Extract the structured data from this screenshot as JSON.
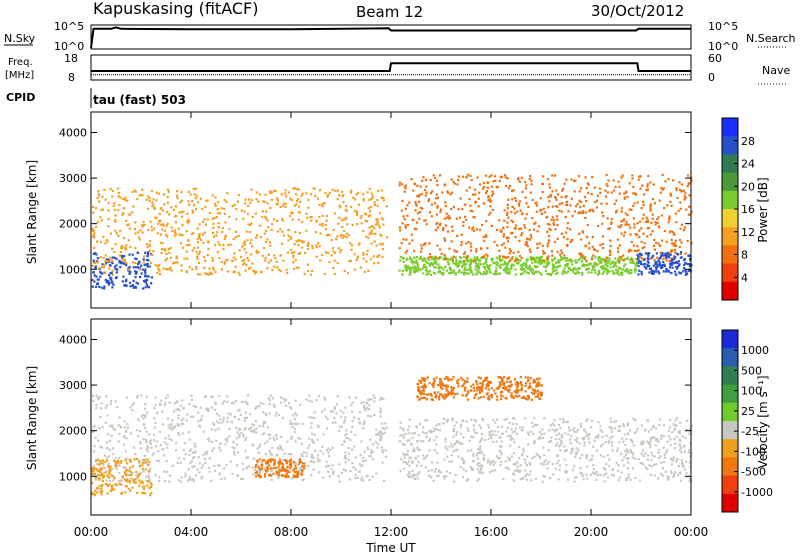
{
  "header": {
    "title": "Kapuskasing (fitACF)",
    "beam": "Beam 12",
    "date": "30/Oct/2012"
  },
  "panels": {
    "nsky": {
      "left_label": "N.Sky",
      "right_label": "N.Search",
      "left_ticks": [
        "10^5",
        "10^0"
      ],
      "right_ticks": [
        "10^5",
        "10^0"
      ]
    },
    "freq": {
      "left_label_1": "Freq.",
      "left_label_2": "[MHz]",
      "right_label": "Nave",
      "left_ticks": [
        "18",
        "8"
      ],
      "right_ticks": [
        "60",
        "0"
      ]
    },
    "cpid": {
      "label": "CPID",
      "value": "tau (fast) 503"
    }
  },
  "xaxis": {
    "title": "Time UT",
    "ticks": [
      "00:00",
      "04:00",
      "08:00",
      "12:00",
      "16:00",
      "20:00",
      "00:00"
    ]
  },
  "power_panel": {
    "ylabel": "Slant Range [km]",
    "yticks": [
      "4000",
      "3000",
      "2000",
      "1000"
    ],
    "colorbar_label": "Power [dB]",
    "colorbar_ticks": [
      "28",
      "24",
      "20",
      "16",
      "12",
      "8",
      "4"
    ],
    "colorbar_colors": [
      "#1830ff",
      "#2650c8",
      "#2f7a50",
      "#4a9a3a",
      "#7acc2c",
      "#f0d030",
      "#f5a020",
      "#f07010",
      "#f04010",
      "#e00000"
    ]
  },
  "velocity_panel": {
    "ylabel": "Slant Range [km]",
    "yticks": [
      "4000",
      "3000",
      "2000",
      "1000"
    ],
    "colorbar_label": "Velocity [m s⁻¹]",
    "colorbar_ticks": [
      "1000",
      "500",
      "100",
      "25",
      "-25",
      "-100",
      "-500",
      "-1000"
    ],
    "colorbar_colors": [
      "#1a2ad8",
      "#2a5cb0",
      "#2e8050",
      "#3fa040",
      "#70cc2c",
      "#c8c8c0",
      "#f0a020",
      "#f07810",
      "#f04010",
      "#e00000"
    ]
  },
  "chart_data": [
    {
      "type": "line",
      "title": "N.Sky / N.Search",
      "x": [
        0,
        0.1,
        0.8,
        1.0,
        1.2,
        4,
        8,
        11.9,
        12.0,
        16,
        20,
        21.8,
        21.9,
        24
      ],
      "series": [
        {
          "name": "N.Sky",
          "values": [
            0.2,
            4.6,
            4.6,
            4.9,
            4.6,
            4.5,
            4.5,
            4.7,
            4.2,
            4.2,
            4.2,
            4.2,
            4.6,
            4.6
          ]
        }
      ],
      "ylim": [
        0,
        5
      ]
    },
    {
      "type": "line",
      "title": "Freq.",
      "x": [
        0,
        11.95,
        12.0,
        21.85,
        21.9,
        24
      ],
      "series": [
        {
          "name": "Freq. [MHz]",
          "values": [
            10.3,
            10.3,
            10.3,
            10.3,
            10.3,
            10.3
          ]
        },
        {
          "name": "Nave",
          "values": [
            20,
            20,
            42,
            42,
            20,
            20
          ]
        }
      ],
      "ylim": [
        8,
        18
      ]
    },
    {
      "type": "heatmap",
      "title": "Power [dB]",
      "xlabel": "Time UT",
      "ylabel": "Slant Range [km]",
      "xlim": [
        0,
        24
      ],
      "ylim": [
        150,
        4450
      ],
      "features": [
        {
          "t": [
            0.0,
            2.4
          ],
          "range": [
            600,
            1400
          ],
          "level": 26
        },
        {
          "t": [
            0.0,
            11.8
          ],
          "range": [
            900,
            2800
          ],
          "level": 10
        },
        {
          "t": [
            12.3,
            21.8
          ],
          "range": [
            900,
            1300
          ],
          "level": 18
        },
        {
          "t": [
            12.3,
            24.0
          ],
          "range": [
            1200,
            3100
          ],
          "level": 8
        },
        {
          "t": [
            21.8,
            24.0
          ],
          "range": [
            900,
            1400
          ],
          "level": 26
        }
      ]
    },
    {
      "type": "heatmap",
      "title": "Velocity",
      "xlabel": "Time UT",
      "ylabel": "Slant Range [km]",
      "xlim": [
        0,
        24
      ],
      "ylim": [
        150,
        4450
      ],
      "features": [
        {
          "t": [
            0.0,
            11.8
          ],
          "range": [
            900,
            2800
          ],
          "level": 0
        },
        {
          "t": [
            0.0,
            2.4
          ],
          "range": [
            600,
            1400
          ],
          "level": -80
        },
        {
          "t": [
            6.5,
            8.5
          ],
          "range": [
            1000,
            1400
          ],
          "level": -200
        },
        {
          "t": [
            13.0,
            18.0
          ],
          "range": [
            2700,
            3200
          ],
          "level": -150
        },
        {
          "t": [
            12.3,
            24.0
          ],
          "range": [
            900,
            2300
          ],
          "level": 0
        }
      ]
    }
  ]
}
